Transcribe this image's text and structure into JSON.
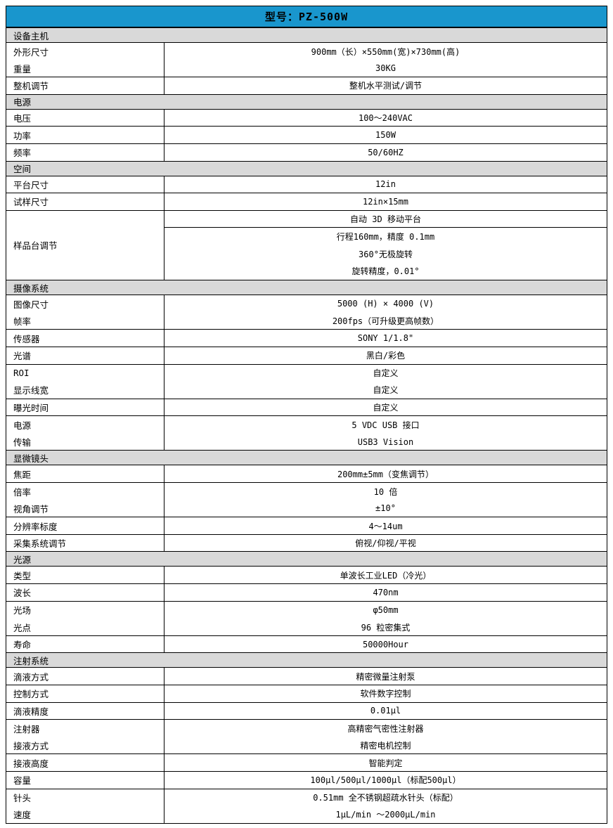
{
  "page": {
    "title": "型号：PZ-500W"
  },
  "colors": {
    "title_bg": "#1996CD",
    "section_bg": "#D9D9D9",
    "border": "#000000",
    "page_bg": "#FFFFFF"
  },
  "table": {
    "sections": [
      {
        "title": "设备主机",
        "rows": [
          {
            "label": "外形尺寸",
            "values": [
              "900mm（长）×550mm(宽)×730mm(高)"
            ],
            "merge_below": true
          },
          {
            "label": "重量",
            "values": [
              "30KG"
            ]
          },
          {
            "label": "整机调节",
            "values": [
              "整机水平测试/调节"
            ]
          }
        ]
      },
      {
        "title": "电源",
        "rows": [
          {
            "label": "电压",
            "values": [
              "100～240VAC"
            ]
          },
          {
            "label": "功率",
            "values": [
              "150W"
            ]
          },
          {
            "label": "频率",
            "values": [
              "50/60HZ"
            ]
          }
        ]
      },
      {
        "title": "空间",
        "rows": [
          {
            "label": "平台尺寸",
            "values": [
              "12in"
            ]
          },
          {
            "label": "试样尺寸",
            "values": [
              "12in×15mm"
            ]
          },
          {
            "label": "样品台调节",
            "values": [
              "自动 3D 移动平台",
              "行程160mm，精度 0.1mm",
              "360°无极旋转",
              "旋转精度，0.01°"
            ],
            "value_separators": [
              true,
              false,
              false
            ]
          }
        ]
      },
      {
        "title": "摄像系统",
        "rows": [
          {
            "label": "图像尺寸",
            "values": [
              "5000 (H) × 4000 (V)"
            ],
            "merge_below": true
          },
          {
            "label": "帧率",
            "values": [
              "200fps（可升级更高帧数）"
            ]
          },
          {
            "label": "传感器",
            "values": [
              "SONY 1/1.8\""
            ]
          },
          {
            "label": "光谱",
            "values": [
              "黑白/彩色"
            ]
          },
          {
            "label": "ROI",
            "values": [
              "自定义"
            ],
            "merge_below": true
          },
          {
            "label": "显示线宽",
            "values": [
              "自定义"
            ]
          },
          {
            "label": "曝光时间",
            "values": [
              "自定义"
            ]
          },
          {
            "label": "电源",
            "values": [
              "5 VDC USB 接口"
            ],
            "merge_below": true
          },
          {
            "label": "传输",
            "values": [
              "USB3 Vision"
            ]
          }
        ]
      },
      {
        "title": "显微镜头",
        "rows": [
          {
            "label": "焦距",
            "values": [
              "200mm±5mm（变焦调节）"
            ]
          },
          {
            "label": "倍率",
            "values": [
              "10 倍"
            ],
            "merge_below": true
          },
          {
            "label": "视角调节",
            "values": [
              "±10°"
            ]
          },
          {
            "label": "分辨率标度",
            "values": [
              "4～14um"
            ]
          },
          {
            "label": "采集系统调节",
            "values": [
              "俯视/仰视/平视"
            ]
          }
        ]
      },
      {
        "title": "光源",
        "rows": [
          {
            "label": "类型",
            "values": [
              "单波长工业LED（冷光）"
            ]
          },
          {
            "label": "波长",
            "values": [
              "470nm"
            ]
          },
          {
            "label": "光场",
            "values": [
              "φ50mm"
            ],
            "merge_below": true
          },
          {
            "label": "光点",
            "values": [
              "96 粒密集式"
            ]
          },
          {
            "label": "寿命",
            "values": [
              "50000Hour"
            ]
          }
        ]
      },
      {
        "title": "注射系统",
        "rows": [
          {
            "label": "滴液方式",
            "values": [
              "精密微量注射泵"
            ]
          },
          {
            "label": "控制方式",
            "values": [
              "软件数字控制"
            ]
          },
          {
            "label": "滴液精度",
            "values": [
              "0.01μl"
            ]
          },
          {
            "label": "注射器",
            "values": [
              "高精密气密性注射器"
            ],
            "merge_below": true
          },
          {
            "label": "接液方式",
            "values": [
              "精密电机控制"
            ]
          },
          {
            "label": "接液高度",
            "values": [
              "智能判定"
            ]
          },
          {
            "label": "容量",
            "values": [
              "100μl/500μl/1000μl（标配500μl）"
            ]
          },
          {
            "label": "针头",
            "values": [
              "0.51mm 全不锈钢超疏水针头（标配）"
            ],
            "merge_below": true
          },
          {
            "label": "速度",
            "values": [
              "1μL/min ～2000μL/min"
            ]
          }
        ]
      }
    ]
  }
}
